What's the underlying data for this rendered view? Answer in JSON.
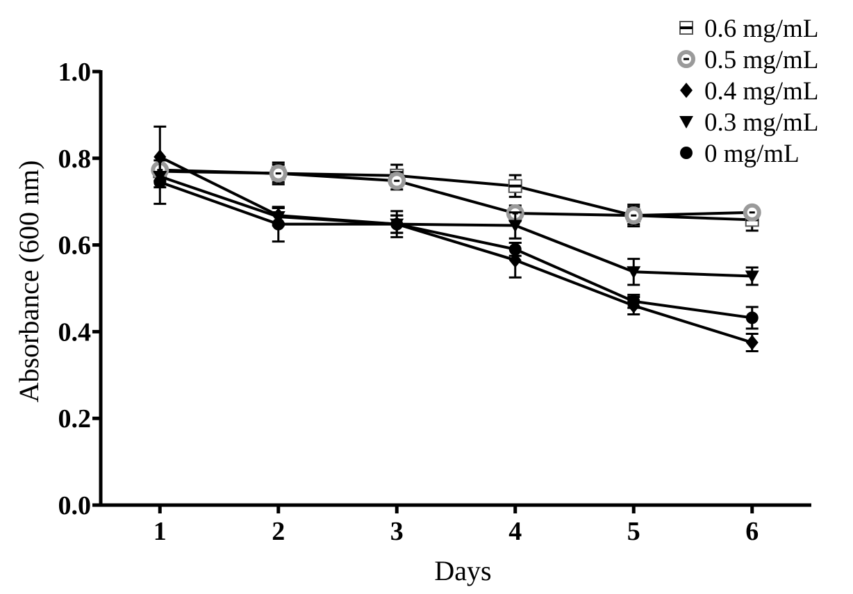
{
  "chart_data": {
    "type": "line",
    "title": "",
    "xlabel": "Days",
    "ylabel": "Absorbance (600 nm)",
    "x": [
      1,
      2,
      3,
      4,
      5,
      6
    ],
    "xlim": [
      0.5,
      6.5
    ],
    "ylim": [
      0.0,
      1.0
    ],
    "yticks": [
      "0.0",
      "0.2",
      "0.4",
      "0.6",
      "0.8",
      "1.0"
    ],
    "xticks": [
      "1",
      "2",
      "3",
      "4",
      "5",
      "6"
    ],
    "grid": false,
    "legend_position": "top-right",
    "series": [
      {
        "name": "0.6 mg/mL",
        "marker": "square-open",
        "values": [
          0.77,
          0.765,
          0.76,
          0.736,
          0.668,
          0.658
        ],
        "errors": [
          0.01,
          0.02,
          0.025,
          0.025,
          0.025,
          0.025
        ]
      },
      {
        "name": "0.5 mg/mL",
        "marker": "circle-gray",
        "values": [
          0.773,
          0.765,
          0.748,
          0.673,
          0.668,
          0.675
        ],
        "errors": [
          0.01,
          0.025,
          0.02,
          0.018,
          0.02,
          0.01
        ]
      },
      {
        "name": "0.4 mg/mL",
        "marker": "diamond",
        "values": [
          0.803,
          0.668,
          0.648,
          0.565,
          0.46,
          0.375
        ],
        "errors": [
          0.07,
          0.018,
          0.02,
          0.04,
          0.02,
          0.02
        ]
      },
      {
        "name": "0.3 mg/mL",
        "marker": "triangle-down",
        "values": [
          0.758,
          0.665,
          0.648,
          0.645,
          0.538,
          0.528
        ],
        "errors": [
          0.01,
          0.02,
          0.02,
          0.03,
          0.03,
          0.02
        ]
      },
      {
        "name": "0 mg/mL",
        "marker": "circle",
        "values": [
          0.745,
          0.648,
          0.648,
          0.59,
          0.47,
          0.432
        ],
        "errors": [
          0.05,
          0.04,
          0.03,
          0.015,
          0.015,
          0.025
        ]
      }
    ]
  }
}
